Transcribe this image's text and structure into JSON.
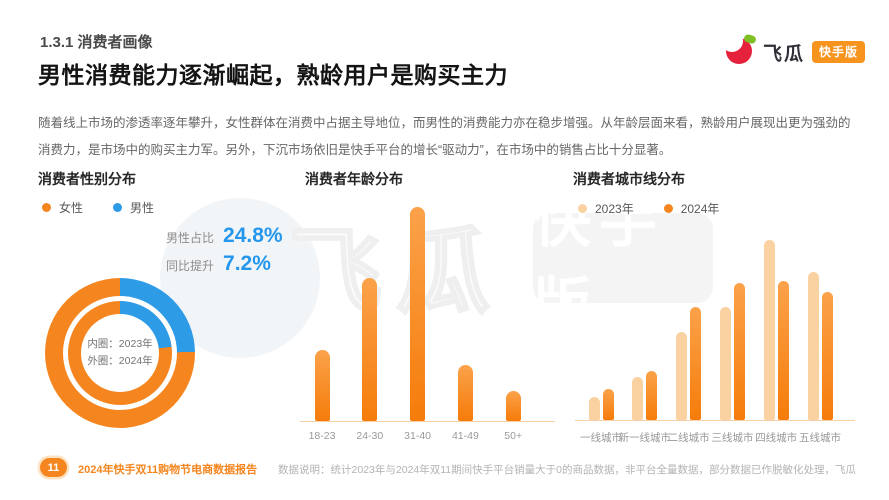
{
  "header": {
    "section": "1.3.1 消费者画像",
    "title": "男性消费能力逐渐崛起，熟龄用户是购买主力"
  },
  "logo": {
    "brand": "飞瓜",
    "edition_badge": "快手版"
  },
  "intro": "随着线上市场的渗透率逐年攀升，女性群体在消费中占据主导地位，而男性的消费能力亦在稳步增强。从年龄层面来看，熟龄用户展现出更为强劲的消费力，是市场中的购买主力军。另外，下沉市场依旧是快手平台的增长“驱动力”，在市场中的销售占比十分显著。",
  "watermark": {
    "text1": "飞瓜",
    "text2": "快手版"
  },
  "gender": {
    "legend": [
      {
        "label": "女性",
        "color": "#F5861F"
      },
      {
        "label": "男性",
        "color": "#2E9BE6"
      }
    ],
    "stats": [
      {
        "label": "男性占比",
        "value": "24.8%"
      },
      {
        "label": "同比提升",
        "value": "7.2%"
      }
    ],
    "center_note": [
      "内圈：2023年",
      "外圈：2024年"
    ]
  },
  "chart_data": [
    {
      "name": "消费者性别分布",
      "type": "pie",
      "subtype": "double-ring-donut",
      "rings": [
        {
          "ring": "inner",
          "year": "2023年",
          "slices": [
            {
              "label": "男性",
              "value": 23.1,
              "color": "#2E9BE6"
            },
            {
              "label": "女性",
              "value": 76.9,
              "color": "#F5861F"
            }
          ]
        },
        {
          "ring": "outer",
          "year": "2024年",
          "slices": [
            {
              "label": "男性",
              "value": 24.8,
              "color": "#2E9BE6"
            },
            {
              "label": "女性",
              "value": 75.2,
              "color": "#F5861F"
            }
          ]
        }
      ],
      "annotations": [
        "男性占比 24.8%",
        "同比提升 7.2%",
        "内圈：2023年",
        "外圈：2024年"
      ],
      "legend_position": "top"
    },
    {
      "name": "消费者年龄分布",
      "type": "bar",
      "categories": [
        "18-23",
        "24-30",
        "31-40",
        "41-49",
        "50+"
      ],
      "values": [
        33,
        67,
        100,
        26,
        14
      ],
      "value_note": "相对高度，占最高柱(31-40)的百分比；图中无数值轴",
      "bar_color": "#F5861F",
      "grid": false
    },
    {
      "name": "消费者城市线分布",
      "type": "bar",
      "categories": [
        "一线城市",
        "新一线城市",
        "二线城市",
        "三线城市",
        "四线城市",
        "五线城市"
      ],
      "series": [
        {
          "name": "2023年",
          "color": "#FAD2A2",
          "values": [
            13,
            24,
            49,
            63,
            100,
            82
          ]
        },
        {
          "name": "2024年",
          "color": "#F5861F",
          "values": [
            17,
            27,
            63,
            76,
            77,
            71
          ]
        }
      ],
      "value_note": "相对高度，占最高柱(四线城市2023年)的百分比；图中无数值轴",
      "legend_position": "top",
      "grid": false
    }
  ],
  "footer": {
    "page": "11",
    "report": "2024年快手双11购物节电商数据报告",
    "note": "数据说明：统计2023年与2024年双11期间快手平台销量大于0的商品数据，非平台全量数据，部分数据已作脱敏化处理，飞瓜"
  }
}
